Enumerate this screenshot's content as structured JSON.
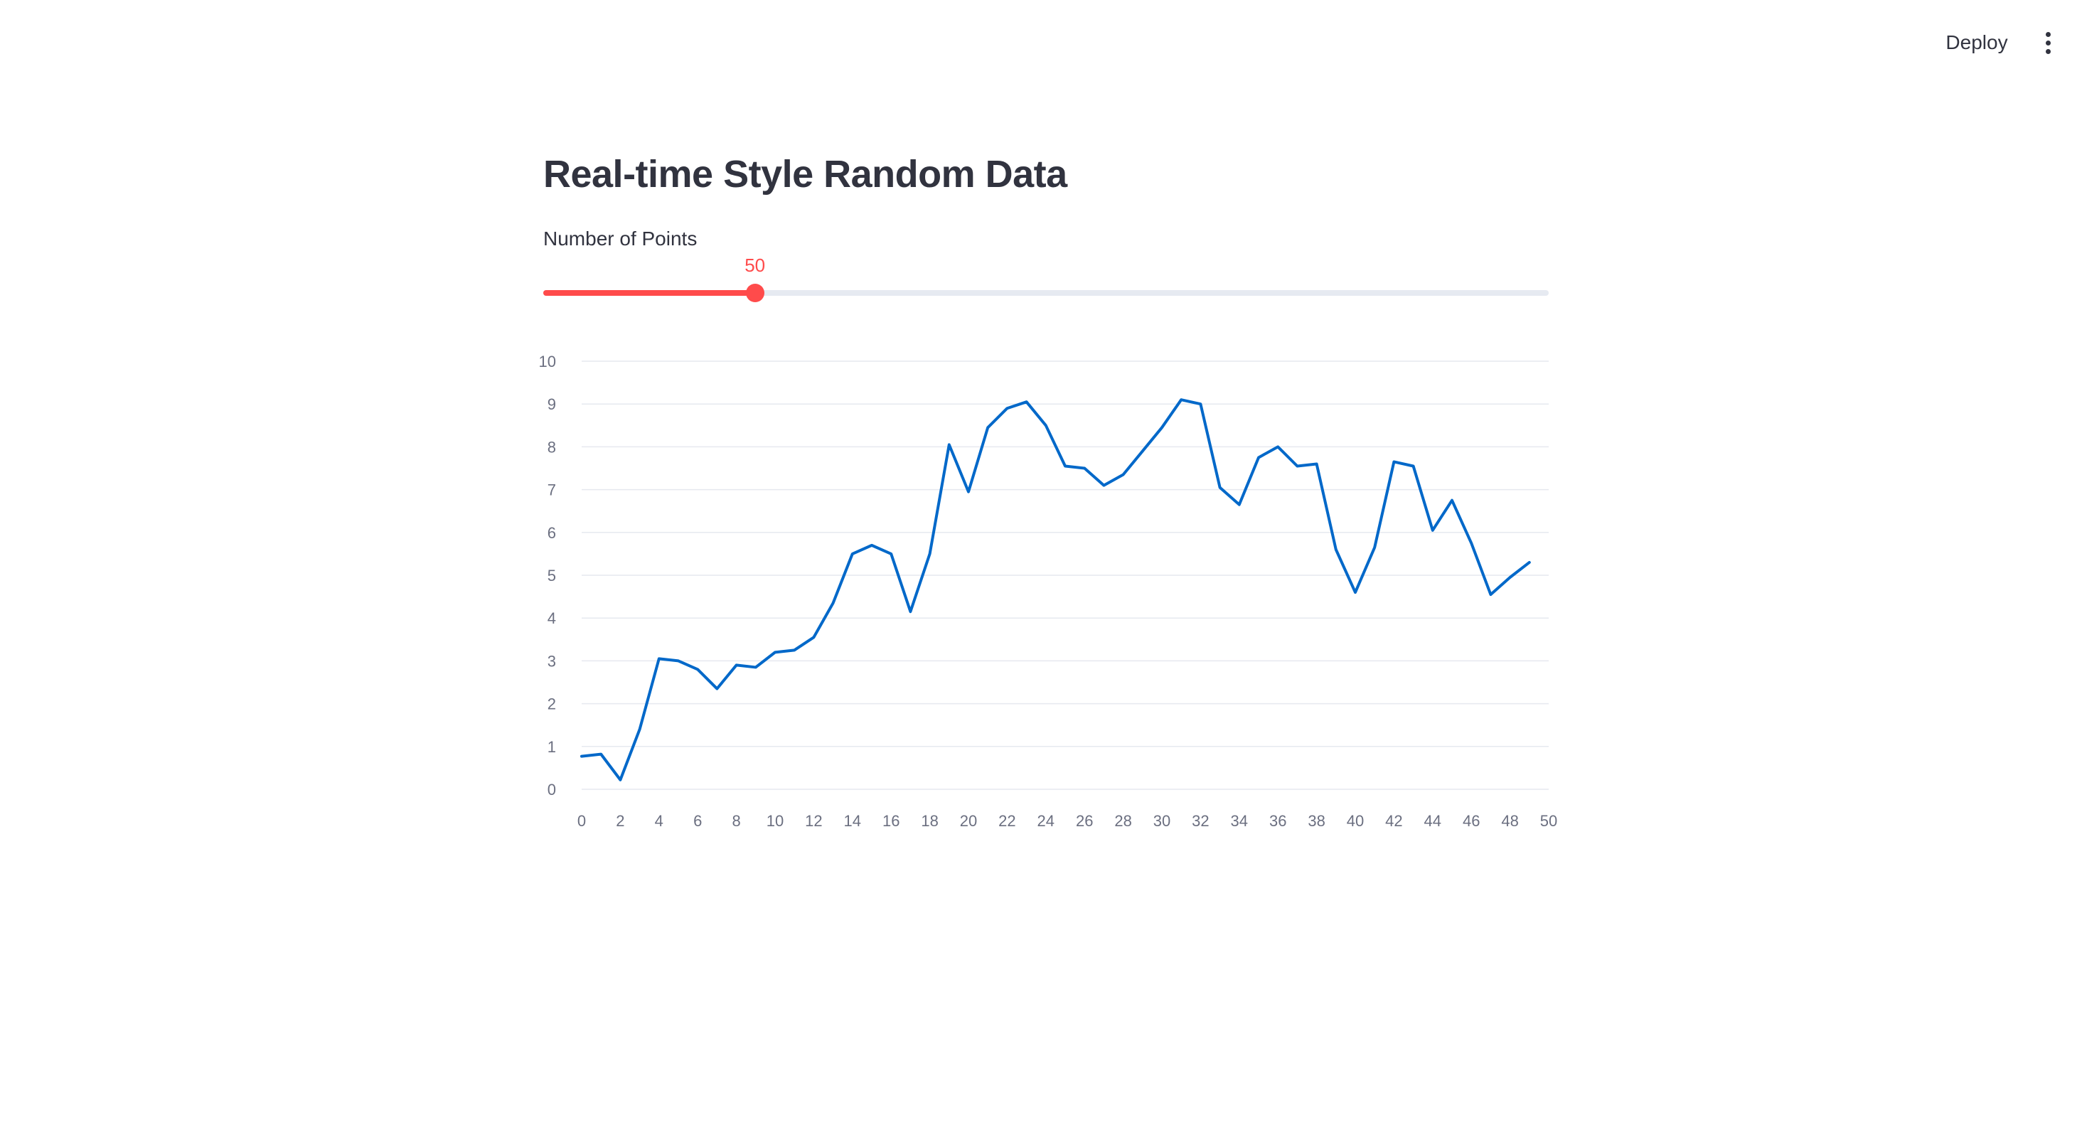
{
  "toolbar": {
    "deploy_label": "Deploy",
    "menu_icon": "kebab-menu-icon"
  },
  "main": {
    "title": "Real-time Style Random Data",
    "slider": {
      "label": "Number of Points",
      "value": 50,
      "min": 10,
      "max": 200,
      "value_text": "50",
      "color": "#ff4b4b",
      "track_color": "#e6eaf1"
    }
  },
  "chart_data": {
    "type": "line",
    "title": "",
    "xlabel": "",
    "ylabel": "",
    "xlim": [
      0,
      50
    ],
    "ylim": [
      0,
      10
    ],
    "x_ticks": [
      0,
      2,
      4,
      6,
      8,
      10,
      12,
      14,
      16,
      18,
      20,
      22,
      24,
      26,
      28,
      30,
      32,
      34,
      36,
      38,
      40,
      42,
      44,
      46,
      48,
      50
    ],
    "y_ticks": [
      0,
      1,
      2,
      3,
      4,
      5,
      6,
      7,
      8,
      9,
      10
    ],
    "grid": "horizontal",
    "legend": "none",
    "series": [
      {
        "color": "#0068c9",
        "x": [
          0,
          1,
          2,
          3,
          4,
          5,
          6,
          7,
          8,
          9,
          10,
          11,
          12,
          13,
          14,
          15,
          16,
          17,
          18,
          19,
          20,
          21,
          22,
          23,
          24,
          25,
          26,
          27,
          28,
          29,
          30,
          31,
          32,
          33,
          34,
          35,
          36,
          37,
          38,
          39,
          40,
          41,
          42,
          43,
          44,
          45,
          46,
          47,
          48,
          49
        ],
        "values": [
          0.77,
          0.82,
          0.22,
          1.4,
          3.05,
          3.0,
          2.8,
          2.35,
          2.9,
          2.85,
          3.2,
          3.25,
          3.55,
          4.35,
          5.5,
          5.7,
          5.5,
          4.15,
          5.5,
          8.05,
          6.95,
          8.45,
          8.9,
          9.05,
          8.5,
          7.55,
          7.5,
          7.1,
          7.35,
          7.9,
          8.45,
          9.1,
          9.0,
          7.05,
          6.65,
          7.75,
          8.0,
          7.55,
          7.6,
          5.6,
          4.6,
          5.65,
          7.65,
          7.55,
          6.05,
          6.75,
          5.75,
          4.55,
          4.95,
          5.3
        ]
      }
    ]
  }
}
